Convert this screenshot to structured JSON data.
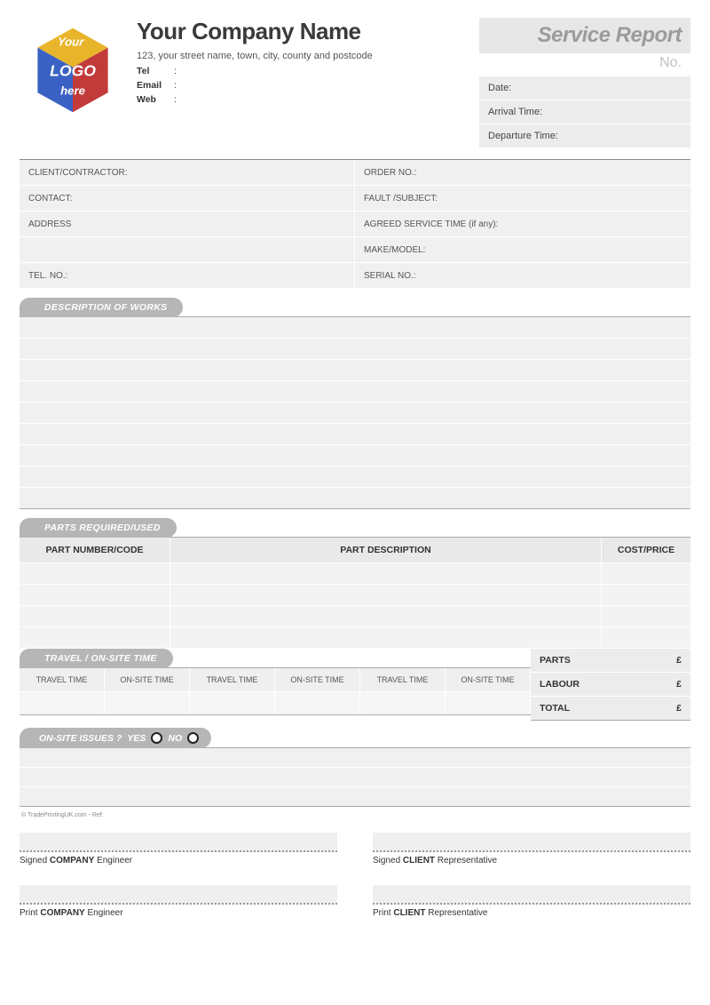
{
  "header": {
    "company_name": "Your Company Name",
    "address": "123, your street name, town, city, county and postcode",
    "tel_lbl": "Tel",
    "email_lbl": "Email",
    "web_lbl": "Web",
    "colon": ":",
    "title": "Service Report",
    "no_lbl": "No.",
    "info": [
      {
        "label": "Date:"
      },
      {
        "label": "Arrival Time:"
      },
      {
        "label": "Departure Time:"
      }
    ],
    "logo": {
      "text_your": "Your",
      "text_logo": "LOGO",
      "text_here": "here",
      "colors": {
        "top": "#e8b42a",
        "left": "#3a62c4",
        "right": "#c23a3a",
        "front": "#3aa84a"
      }
    }
  },
  "client_fields": {
    "left": [
      "CLIENT/CONTRACTOR:",
      "CONTACT:",
      "ADDRESS",
      "",
      "TEL. NO.:"
    ],
    "right": [
      "ORDER NO.:",
      "FAULT /SUBJECT:",
      "AGREED SERVICE TIME (if any):",
      "MAKE/MODEL:",
      "SERIAL NO.:"
    ]
  },
  "sections": {
    "desc_tab": "DESCRIPTION OF WORKS",
    "desc_rows": 9,
    "parts_tab": "PARTS REQUIRED/USED",
    "parts_headers": [
      "PART NUMBER/CODE",
      "PART DESCRIPTION",
      "COST/PRICE"
    ],
    "parts_rows": 4,
    "time_tab": "TRAVEL / ON-SITE TIME",
    "time_headers": [
      "TRAVEL TIME",
      "ON-SITE TIME",
      "TRAVEL TIME",
      "ON-SITE TIME",
      "TRAVEL TIME",
      "ON-SITE TIME"
    ],
    "totals": [
      {
        "label": "PARTS",
        "cur": "£"
      },
      {
        "label": "LABOUR",
        "cur": "£"
      },
      {
        "label": "TOTAL",
        "cur": "£"
      }
    ],
    "issues_tab": "ON-SITE ISSUES ?",
    "yes": "YES",
    "no": "NO",
    "issues_rows": 3
  },
  "footnote": "© TradePrintingUK.com - Ref:",
  "signatures": {
    "s1": {
      "pre": "Signed ",
      "bold": "COMPANY",
      "post": " Engineer"
    },
    "s2": {
      "pre": "Signed ",
      "bold": "CLIENT",
      "post": " Representative"
    },
    "s3": {
      "pre": "Print ",
      "bold": "COMPANY",
      "post": " Engineer"
    },
    "s4": {
      "pre": "Print ",
      "bold": "CLIENT",
      "post": " Representative"
    }
  },
  "colors": {
    "tab_bg": "#b6b6b6",
    "row_bg": "#f0f0f0",
    "border": "#aaaaaa"
  }
}
